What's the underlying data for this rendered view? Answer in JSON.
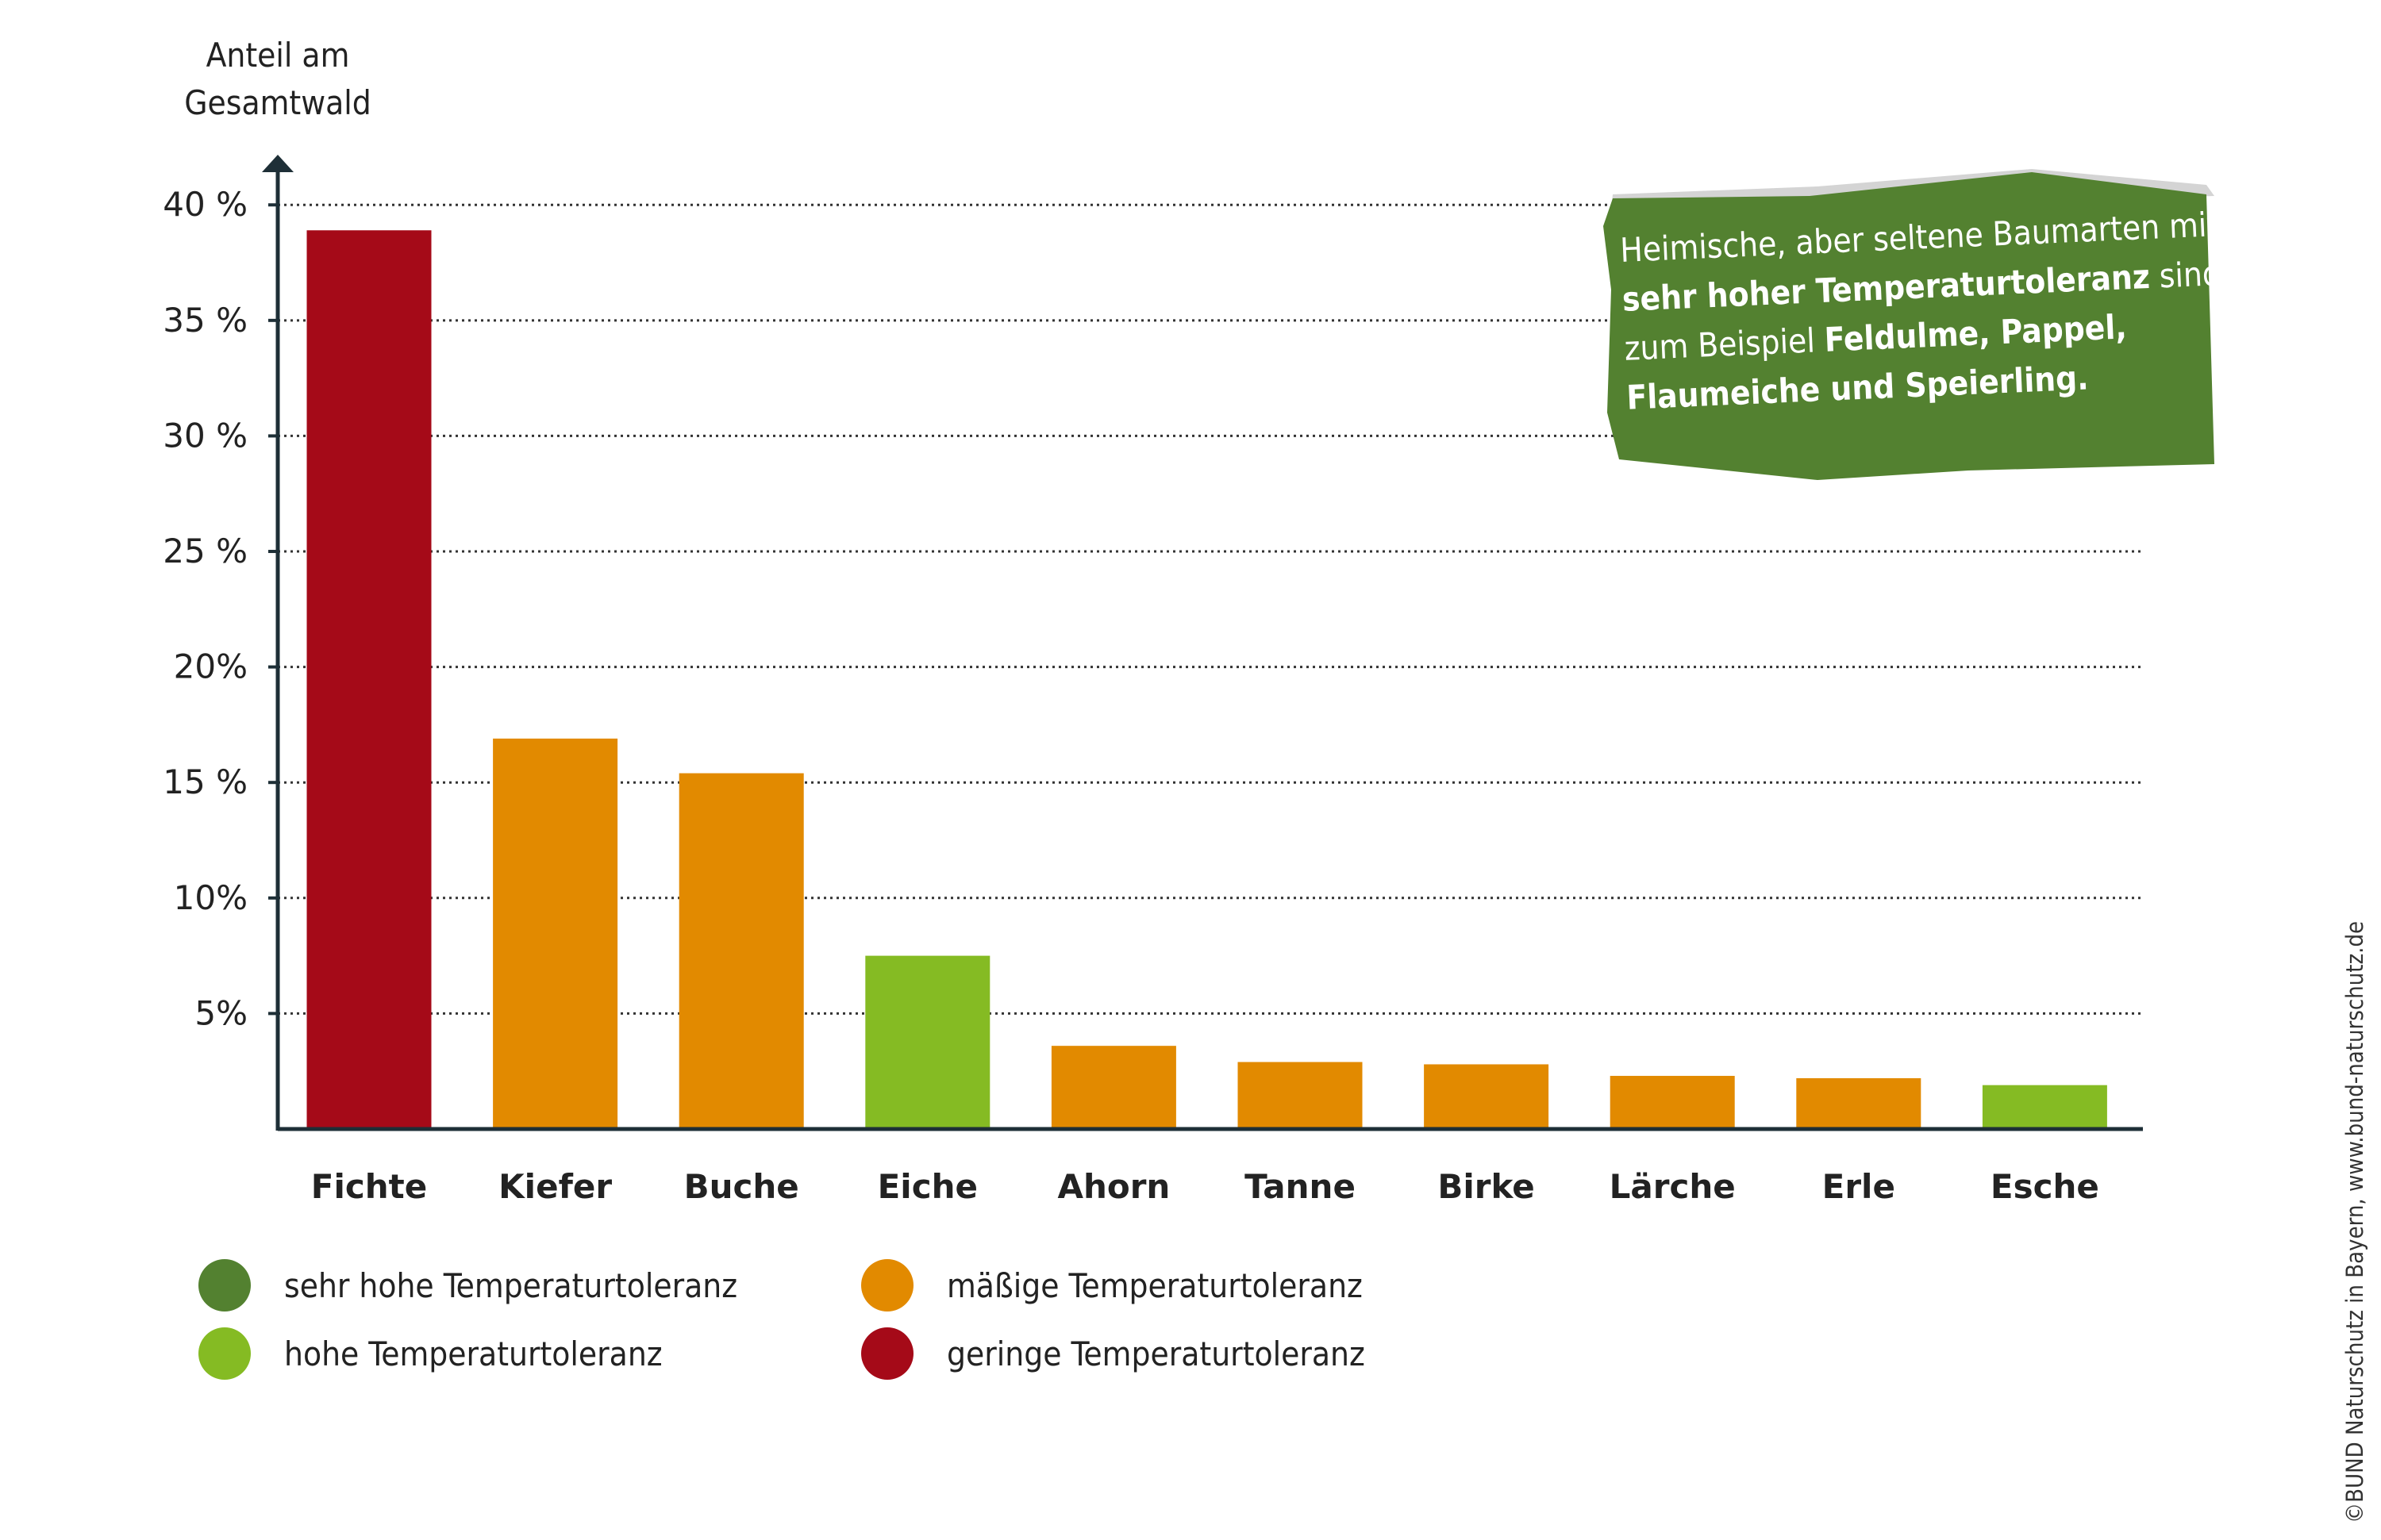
{
  "chart_data": {
    "type": "bar",
    "ylabel": "Anteil am Gesamtwald",
    "ylabel_lines": [
      "Anteil am",
      "Gesamtwald"
    ],
    "ylim": [
      0,
      42
    ],
    "yticks": [
      {
        "value": 5,
        "label": "5%"
      },
      {
        "value": 10,
        "label": "10%"
      },
      {
        "value": 15,
        "label": "15 %"
      },
      {
        "value": 20,
        "label": "20%"
      },
      {
        "value": 25,
        "label": "25 %"
      },
      {
        "value": 30,
        "label": "30 %"
      },
      {
        "value": 35,
        "label": "35 %"
      },
      {
        "value": 40,
        "label": "40 %"
      }
    ],
    "grid": true,
    "categories": [
      "Fichte",
      "Kiefer",
      "Buche",
      "Eiche",
      "Ahorn",
      "Tanne",
      "Birke",
      "Lärche",
      "Erle",
      "Esche"
    ],
    "values": [
      38.9,
      16.9,
      15.4,
      7.5,
      3.6,
      2.9,
      2.8,
      2.3,
      2.2,
      1.9
    ],
    "tolerance": [
      "geringe",
      "mäßige",
      "mäßige",
      "hohe",
      "mäßige",
      "mäßige",
      "mäßige",
      "mäßige",
      "mäßige",
      "hohe"
    ]
  },
  "colors": {
    "sehr_hohe": "#538130",
    "hohe": "#85bb23",
    "maessige": "#e28a00",
    "geringe": "#a50a18",
    "axis": "#1e2f37",
    "grid": "#333333",
    "callout_bg": "#538130",
    "callout_shadow": "#d4d4d4"
  },
  "legend": [
    {
      "key": "sehr_hohe",
      "label": "sehr hohe Temperaturtoleranz"
    },
    {
      "key": "maessige",
      "label": "mäßige Temperaturtoleranz"
    },
    {
      "key": "hohe",
      "label": "hohe Temperaturtoleranz"
    },
    {
      "key": "geringe",
      "label": "geringe Temperaturtoleranz"
    }
  ],
  "callout": {
    "part1": "Heimische, aber seltene Baumarten mit ",
    "bold1": "sehr hoher Temperaturtoleranz",
    "part2": " sind zum Beispiel ",
    "bold2": "Feldulme, Pappel, Flaumeiche und Speierling."
  },
  "credit": "©BUND Naturschutz in Bayern, www.bund-naturschutz.de"
}
